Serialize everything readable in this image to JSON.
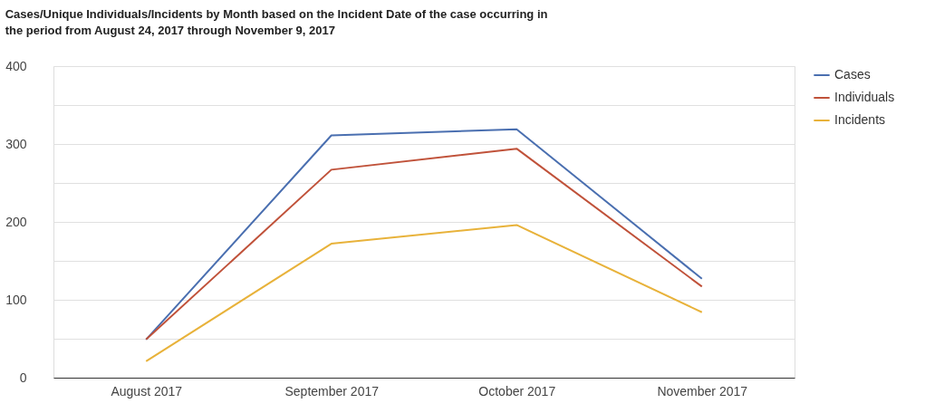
{
  "chart_data": {
    "type": "line",
    "title": "Cases/Unique Individuals/Incidents by Month based on the Incident Date of the case occurring in the period from August 24, 2017 through November 9, 2017",
    "categories": [
      "August 2017",
      "September 2017",
      "October 2017",
      "November 2017"
    ],
    "series": [
      {
        "name": "Cases",
        "color": "#4a6fb0",
        "values": [
          49,
          311,
          319,
          127
        ]
      },
      {
        "name": "Individuals",
        "color": "#c0523a",
        "values": [
          49,
          267,
          294,
          117
        ]
      },
      {
        "name": "Incidents",
        "color": "#e8b23a",
        "values": [
          21,
          172,
          196,
          84
        ]
      }
    ],
    "ylim": [
      0,
      400
    ],
    "yticks": [
      0,
      {
        "value": 50,
        "label": null
      },
      100,
      {
        "value": 150,
        "label": null
      },
      200,
      {
        "value": 250,
        "label": null
      },
      300,
      {
        "value": 350,
        "label": null
      },
      400
    ],
    "grid": "y",
    "legend": "top right",
    "marker": "none",
    "line_style": "solid"
  }
}
